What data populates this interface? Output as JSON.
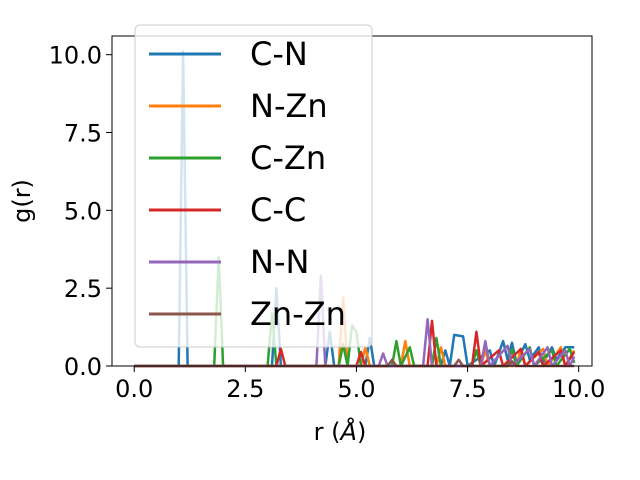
{
  "chart_data": {
    "type": "line",
    "title": "",
    "xlabel": "r (",
    "xlabel_symbol": "Å",
    "xlabel_close": ")",
    "ylabel": "g(r)",
    "xlim": [
      -0.5,
      10.3
    ],
    "ylim": [
      0,
      10.6
    ],
    "xticks": [
      0.0,
      2.5,
      5.0,
      7.5,
      10.0
    ],
    "xtick_labels": [
      "0.0",
      "2.5",
      "5.0",
      "7.5",
      "10.0"
    ],
    "yticks": [
      0.0,
      2.5,
      5.0,
      7.5,
      10.0
    ],
    "ytick_labels": [
      "0.0",
      "2.5",
      "5.0",
      "7.5",
      "10.0"
    ],
    "grid": false,
    "legend_position": "top-left",
    "series": [
      {
        "name": "C-N",
        "color": "#1f77b4",
        "points": [
          [
            0,
            0
          ],
          [
            1.0,
            0
          ],
          [
            1.1,
            10.1
          ],
          [
            1.2,
            0
          ],
          [
            3.1,
            0
          ],
          [
            3.2,
            2.5
          ],
          [
            3.3,
            0
          ],
          [
            4.3,
            0
          ],
          [
            4.4,
            1.1
          ],
          [
            4.5,
            0
          ],
          [
            5.2,
            0
          ],
          [
            5.3,
            0.9
          ],
          [
            5.4,
            0
          ],
          [
            6.9,
            0
          ],
          [
            7.0,
            0.5
          ],
          [
            7.1,
            0
          ],
          [
            7.2,
            1.0
          ],
          [
            7.4,
            0.95
          ],
          [
            7.5,
            0
          ],
          [
            8.0,
            0.5
          ],
          [
            8.1,
            0
          ],
          [
            8.3,
            0.8
          ],
          [
            8.4,
            0.2
          ],
          [
            8.5,
            0.75
          ],
          [
            8.6,
            0.1
          ],
          [
            8.8,
            0.7
          ],
          [
            8.9,
            0.2
          ],
          [
            9.1,
            0.6
          ],
          [
            9.2,
            0.1
          ],
          [
            9.4,
            0.6
          ],
          [
            9.5,
            0.2
          ],
          [
            9.7,
            0.6
          ],
          [
            9.9,
            0.6
          ]
        ]
      },
      {
        "name": "N-Zn",
        "color": "#ff7f0e",
        "points": [
          [
            0,
            0
          ],
          [
            4.6,
            0
          ],
          [
            4.7,
            2.2
          ],
          [
            4.8,
            0
          ],
          [
            5.1,
            0
          ],
          [
            5.2,
            0.6
          ],
          [
            5.3,
            0
          ],
          [
            6.0,
            0
          ],
          [
            6.1,
            0.8
          ],
          [
            6.2,
            0
          ],
          [
            6.8,
            0
          ],
          [
            6.9,
            0.6
          ],
          [
            7.0,
            0
          ],
          [
            7.8,
            0
          ],
          [
            7.9,
            0.5
          ],
          [
            8.0,
            0
          ],
          [
            8.6,
            0
          ],
          [
            8.7,
            0.55
          ],
          [
            8.8,
            0
          ],
          [
            9.2,
            0.55
          ],
          [
            9.3,
            0
          ],
          [
            9.6,
            0.6
          ],
          [
            9.7,
            0
          ],
          [
            9.9,
            0.5
          ]
        ]
      },
      {
        "name": "C-Zn",
        "color": "#2ca02c",
        "points": [
          [
            0,
            0
          ],
          [
            1.8,
            0
          ],
          [
            1.9,
            3.5
          ],
          [
            2.0,
            0
          ],
          [
            3.0,
            0
          ],
          [
            3.1,
            1.7
          ],
          [
            3.2,
            0
          ],
          [
            4.6,
            0
          ],
          [
            4.7,
            0.7
          ],
          [
            4.8,
            0
          ],
          [
            4.9,
            1.3
          ],
          [
            5.0,
            1.1
          ],
          [
            5.1,
            0
          ],
          [
            5.8,
            0
          ],
          [
            5.9,
            0.8
          ],
          [
            6.0,
            0
          ],
          [
            6.2,
            0.6
          ],
          [
            6.3,
            0
          ],
          [
            6.7,
            0
          ],
          [
            6.8,
            0.9
          ],
          [
            6.9,
            0
          ],
          [
            7.6,
            0
          ],
          [
            7.7,
            0.5
          ],
          [
            7.8,
            0
          ],
          [
            8.4,
            0
          ],
          [
            8.5,
            0.55
          ],
          [
            8.6,
            0
          ],
          [
            8.9,
            0.6
          ],
          [
            9.0,
            0
          ],
          [
            9.4,
            0.5
          ],
          [
            9.5,
            0
          ],
          [
            9.8,
            0.55
          ],
          [
            9.9,
            0.1
          ]
        ]
      },
      {
        "name": "C-C",
        "color": "#d62728",
        "points": [
          [
            0,
            0
          ],
          [
            3.2,
            0
          ],
          [
            3.3,
            0.55
          ],
          [
            3.4,
            0
          ],
          [
            5.0,
            0
          ],
          [
            5.1,
            0.45
          ],
          [
            5.2,
            0
          ],
          [
            6.6,
            0
          ],
          [
            6.7,
            1.45
          ],
          [
            6.8,
            0
          ],
          [
            7.6,
            0
          ],
          [
            7.7,
            1.1
          ],
          [
            7.8,
            0
          ],
          [
            8.2,
            0.5
          ],
          [
            8.3,
            0
          ],
          [
            8.7,
            0.55
          ],
          [
            8.8,
            0
          ],
          [
            9.1,
            0.45
          ],
          [
            9.2,
            0
          ],
          [
            9.6,
            0.5
          ],
          [
            9.7,
            0
          ],
          [
            9.9,
            0.45
          ]
        ]
      },
      {
        "name": "N-N",
        "color": "#9467bd",
        "points": [
          [
            0,
            0
          ],
          [
            4.1,
            0
          ],
          [
            4.2,
            2.9
          ],
          [
            4.3,
            0
          ],
          [
            5.5,
            0
          ],
          [
            5.6,
            0.4
          ],
          [
            5.7,
            0
          ],
          [
            6.5,
            0
          ],
          [
            6.6,
            1.5
          ],
          [
            6.7,
            0
          ],
          [
            7.8,
            0
          ],
          [
            7.9,
            0.8
          ],
          [
            8.0,
            0
          ],
          [
            8.4,
            0.65
          ],
          [
            8.5,
            0
          ],
          [
            8.9,
            0.55
          ],
          [
            9.0,
            0
          ],
          [
            9.3,
            0.6
          ],
          [
            9.4,
            0
          ],
          [
            9.7,
            0.5
          ],
          [
            9.8,
            0
          ],
          [
            9.9,
            0.3
          ]
        ]
      },
      {
        "name": "Zn-Zn",
        "color": "#8c564b",
        "points": [
          [
            0,
            0
          ],
          [
            5.7,
            0
          ],
          [
            5.8,
            0.2
          ],
          [
            5.9,
            0
          ],
          [
            7.2,
            0
          ],
          [
            7.3,
            0.2
          ],
          [
            7.4,
            0
          ],
          [
            8.4,
            0
          ],
          [
            8.5,
            0.15
          ],
          [
            8.6,
            0
          ],
          [
            9.9,
            0
          ]
        ]
      }
    ]
  }
}
